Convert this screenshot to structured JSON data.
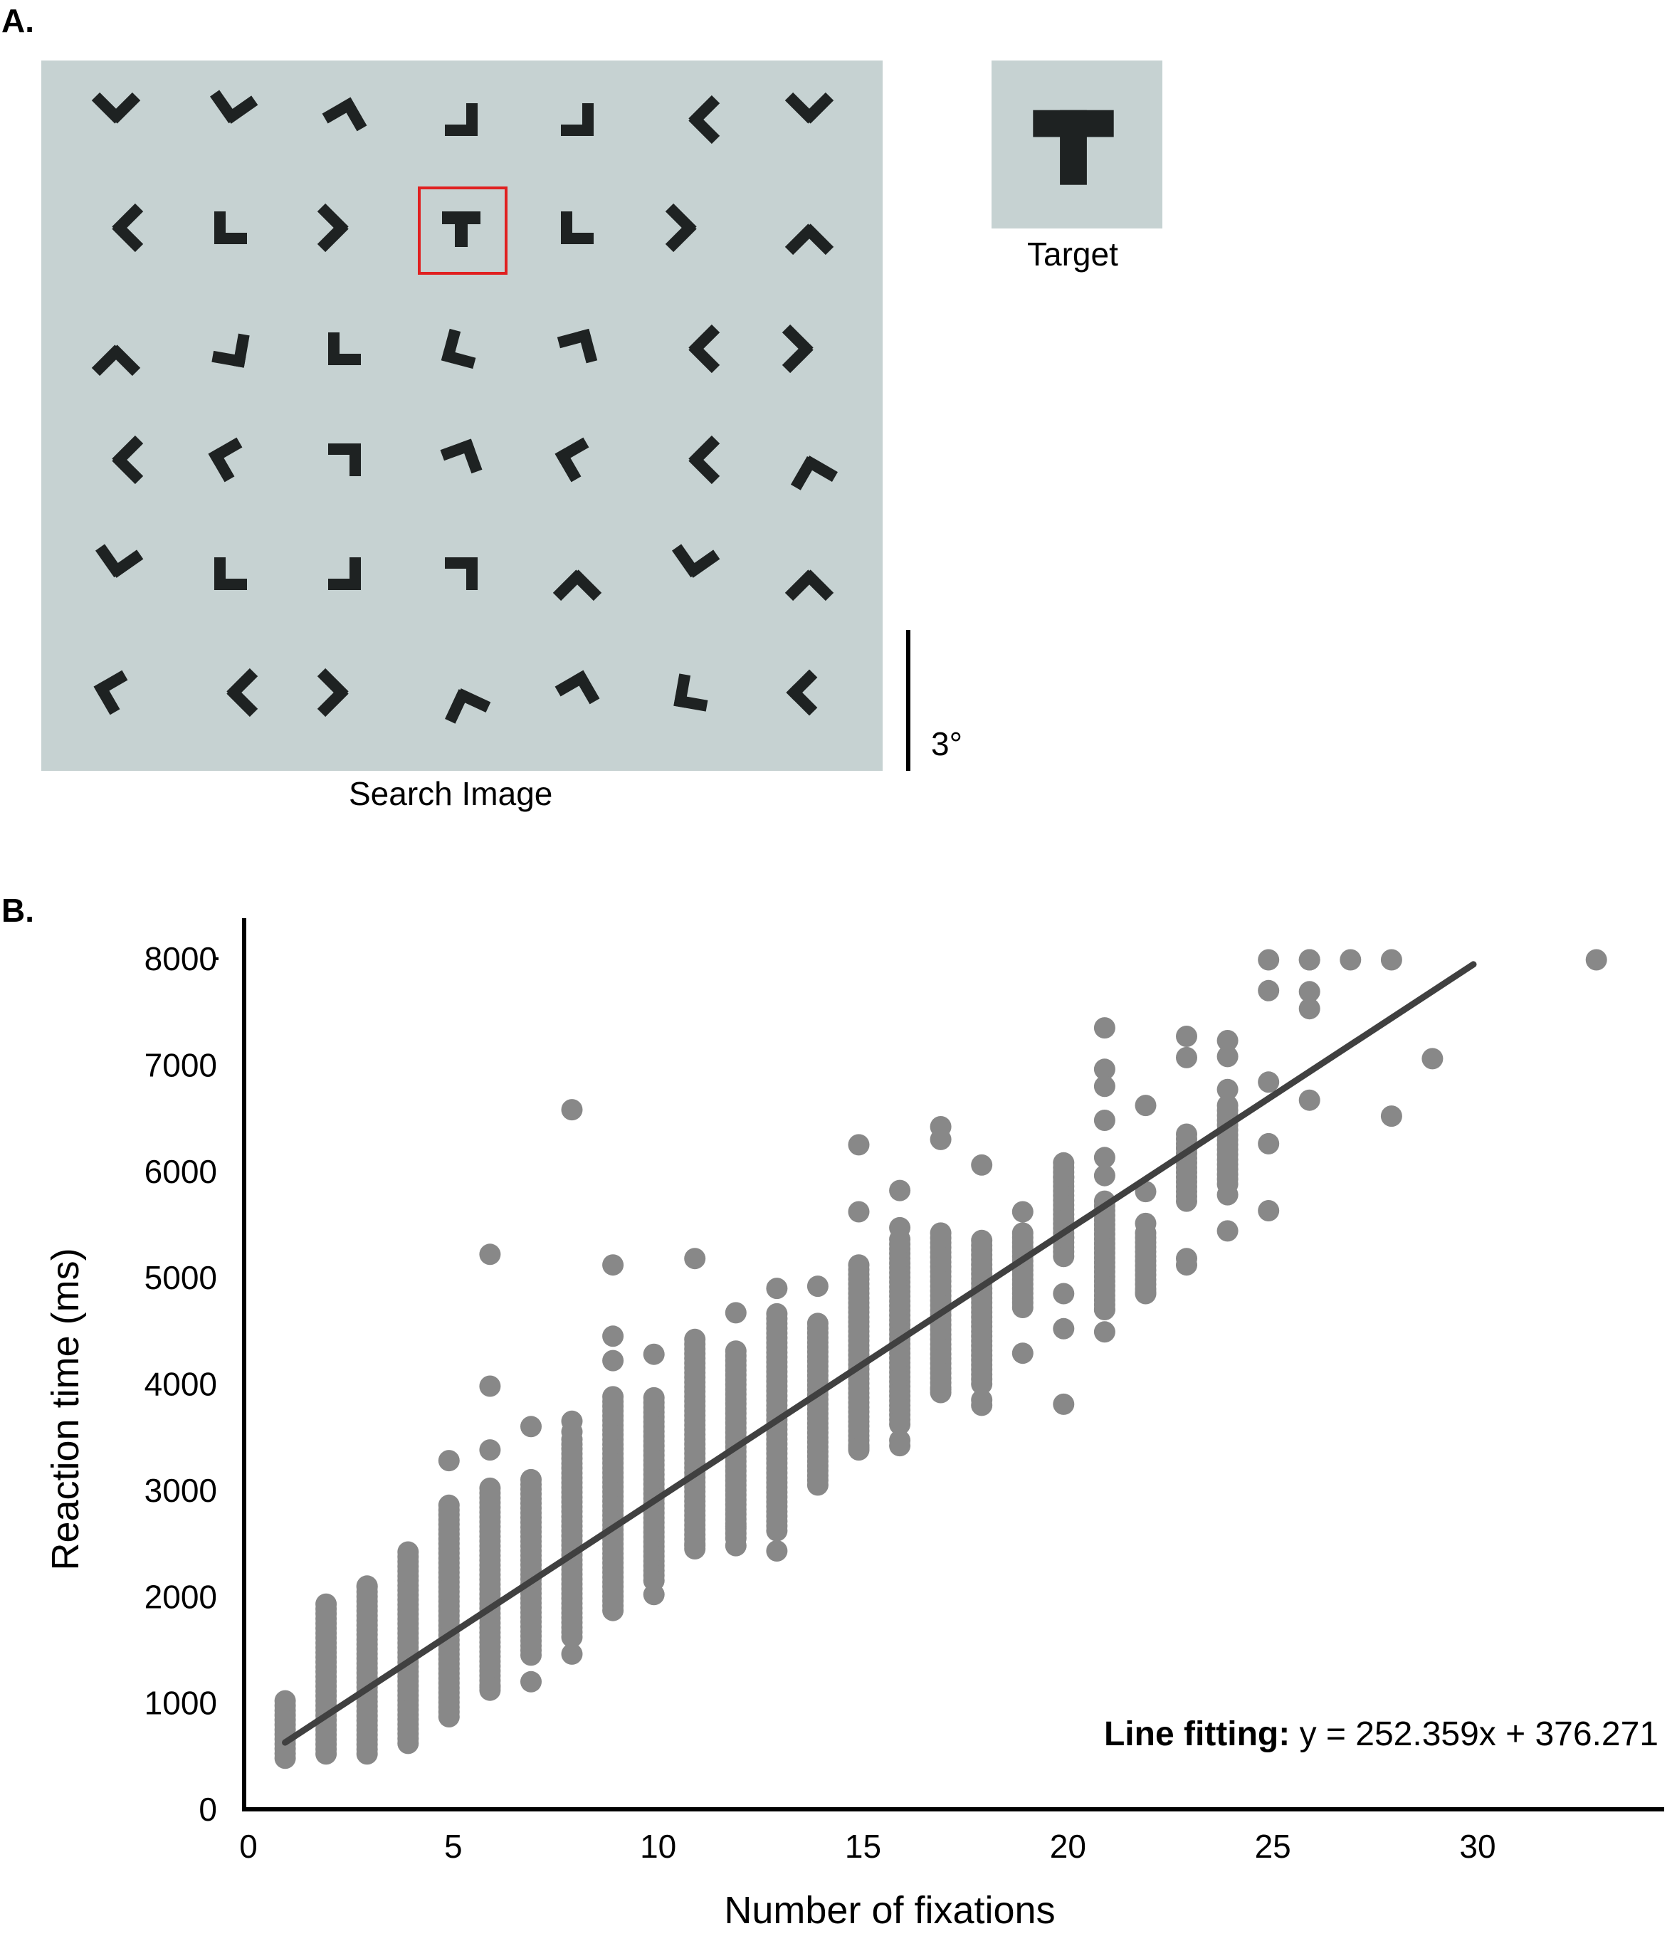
{
  "panel_a": {
    "label": "A.",
    "search_caption": "Search Image",
    "target_caption": "Target",
    "scale_label": "3°",
    "grid": [
      [
        [
          "V",
          0
        ],
        [
          "V",
          10
        ],
        [
          "L",
          150
        ],
        [
          "L",
          -90
        ],
        [
          "L",
          -90
        ],
        [
          "V",
          90
        ],
        [
          "V",
          0
        ]
      ],
      [
        [
          "V",
          90
        ],
        [
          "L",
          0
        ],
        [
          "V",
          -90
        ],
        [
          "T",
          0
        ],
        [
          "L",
          0
        ],
        [
          "V",
          -90
        ],
        [
          "V",
          180
        ]
      ],
      [
        [
          "V",
          180
        ],
        [
          "L",
          -80
        ],
        [
          "L",
          0
        ],
        [
          "L",
          15
        ],
        [
          "L",
          165
        ],
        [
          "V",
          90
        ],
        [
          "V",
          -90
        ]
      ],
      [
        [
          "V",
          90
        ],
        [
          "L",
          60
        ],
        [
          "L",
          180
        ],
        [
          "L",
          160
        ],
        [
          "L",
          60
        ],
        [
          "V",
          90
        ],
        [
          "V",
          165
        ]
      ],
      [
        [
          "V",
          10
        ],
        [
          "L",
          0
        ],
        [
          "L",
          -90
        ],
        [
          "L",
          180
        ],
        [
          "V",
          180
        ],
        [
          "V",
          10
        ],
        [
          "V",
          180
        ]
      ],
      [
        [
          "L",
          60
        ],
        [
          "V",
          90
        ],
        [
          "V",
          -90
        ],
        [
          "V",
          160
        ],
        [
          "L",
          150
        ],
        [
          "L",
          10
        ],
        [
          "L",
          45
        ]
      ]
    ],
    "highlight": {
      "row": 1,
      "col": 3
    },
    "colors": {
      "background": "#c6d2d2",
      "glyph": "#1e2222",
      "highlight": "#e02020"
    }
  },
  "panel_b": {
    "label": "B."
  },
  "chart_data": {
    "type": "scatter",
    "xlabel": "Number of fixations",
    "ylabel": "Reaction time (ms)",
    "xlim": [
      0,
      34.5
    ],
    "ylim": [
      0,
      8000
    ],
    "xticks": [
      0,
      5,
      10,
      15,
      20,
      25,
      30
    ],
    "yticks": [
      0,
      1000,
      2000,
      3000,
      4000,
      5000,
      6000,
      7000,
      8000
    ],
    "grid": false,
    "fit": {
      "slope": 252.359,
      "intercept": 376.271,
      "x_range": [
        1,
        30
      ]
    },
    "annotation": {
      "bold": "Line fitting:",
      "text": " y = 252.359x + 376.271"
    },
    "colors": {
      "points": "#888888",
      "fit_line": "#404040",
      "axes": "#000000"
    },
    "series": [
      {
        "ranges": [
          [
            1,
            480,
            1020
          ],
          [
            2,
            520,
            1930
          ],
          [
            3,
            520,
            2090
          ],
          [
            4,
            620,
            2420
          ],
          [
            5,
            870,
            2860
          ],
          [
            6,
            1120,
            3020
          ],
          [
            7,
            1450,
            3100
          ],
          [
            8,
            1620,
            3480
          ],
          [
            9,
            1870,
            3880
          ],
          [
            10,
            2200,
            3870
          ],
          [
            11,
            2450,
            4420
          ],
          [
            12,
            2550,
            4310
          ],
          [
            13,
            2620,
            4660
          ],
          [
            14,
            3050,
            4570
          ],
          [
            15,
            3380,
            5120
          ],
          [
            16,
            3620,
            5360
          ],
          [
            17,
            3920,
            5420
          ],
          [
            18,
            4000,
            5350
          ],
          [
            19,
            4720,
            5420
          ],
          [
            20,
            5200,
            6080
          ],
          [
            21,
            4700,
            5720
          ],
          [
            22,
            4850,
            5420
          ],
          [
            23,
            5720,
            6350
          ],
          [
            24,
            5880,
            6620
          ]
        ],
        "x": [
          3,
          5,
          6,
          6,
          6,
          6,
          7,
          7,
          8,
          8,
          8,
          8,
          9,
          9,
          9,
          10,
          10,
          10,
          11,
          11,
          12,
          12,
          12,
          13,
          13,
          14,
          15,
          15,
          15,
          16,
          16,
          16,
          16,
          17,
          17,
          17,
          18,
          18,
          18,
          19,
          19,
          20,
          20,
          20,
          20,
          20,
          21,
          21,
          21,
          21,
          21,
          21,
          21,
          21,
          22,
          22,
          22,
          22,
          23,
          23,
          23,
          23,
          23,
          24,
          24,
          24,
          24,
          24,
          25,
          25,
          25,
          25,
          25,
          26,
          26,
          26,
          26,
          26,
          27,
          28,
          28,
          29,
          33
        ],
        "y": [
          2100,
          3280,
          3380,
          3980,
          5220,
          1150,
          3600,
          1200,
          6580,
          3650,
          3550,
          1460,
          4450,
          4220,
          5120,
          2020,
          2150,
          4280,
          5180,
          2480,
          4670,
          2480,
          2660,
          4900,
          2430,
          4920,
          6250,
          5620,
          3400,
          5820,
          5470,
          3470,
          3420,
          6420,
          6300,
          3950,
          6060,
          3850,
          3800,
          5620,
          4290,
          5940,
          5380,
          4850,
          4520,
          3810,
          7350,
          6960,
          6800,
          6480,
          6130,
          5960,
          4700,
          4490,
          6620,
          5810,
          5510,
          4860,
          7270,
          7070,
          6220,
          5180,
          5120,
          7230,
          7080,
          6770,
          5780,
          5440,
          7700,
          6840,
          6260,
          5630,
          7990,
          7690,
          7530,
          6670,
          7990,
          7990,
          7990,
          6520,
          7990,
          7060,
          7990
        ]
      }
    ]
  }
}
